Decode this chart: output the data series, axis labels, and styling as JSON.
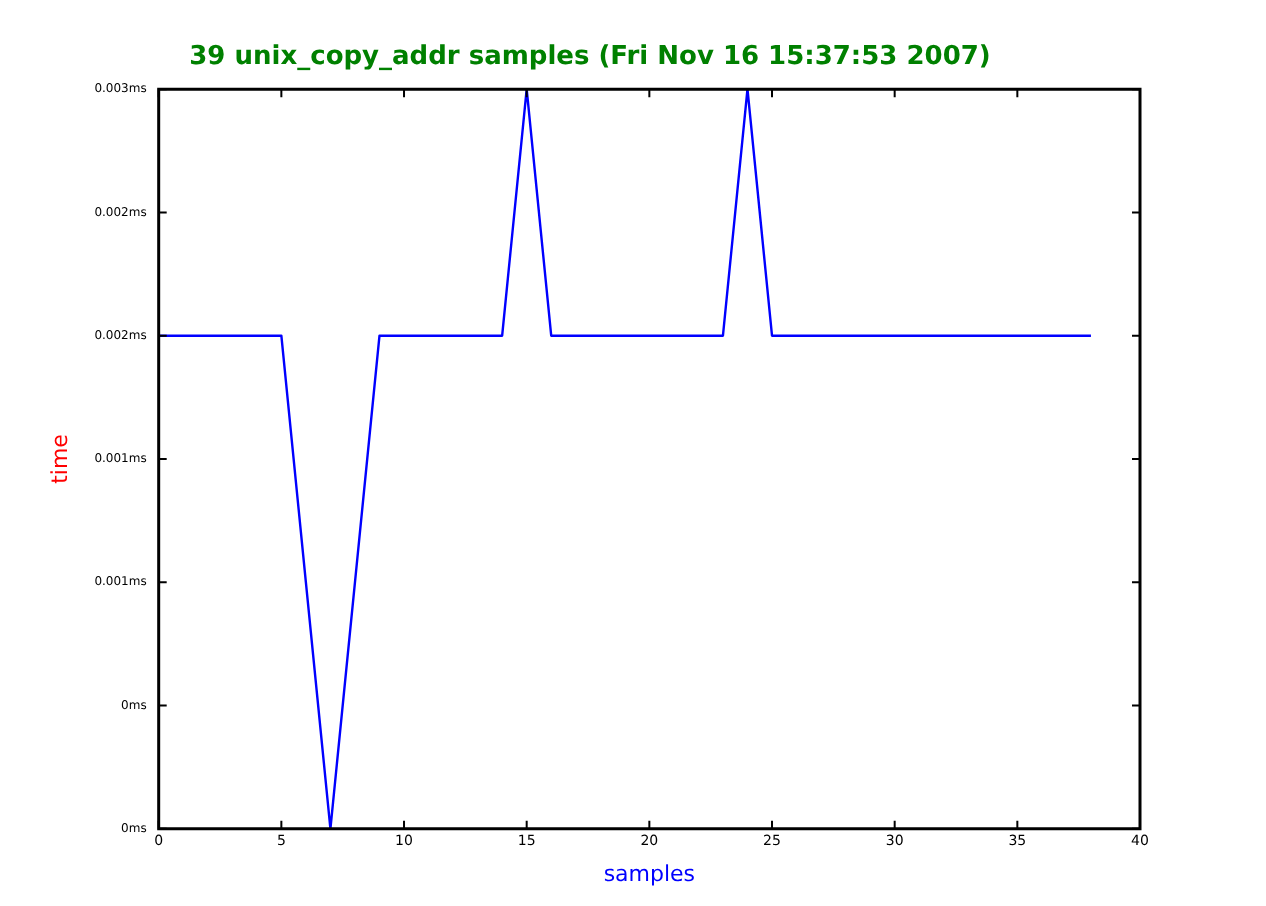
{
  "chart_data": {
    "type": "line",
    "title": "39 unix_copy_addr samples (Fri Nov 16 15:37:53 2007)",
    "xlabel": "samples",
    "ylabel": "time",
    "x": [
      0,
      1,
      2,
      3,
      4,
      5,
      6,
      7,
      8,
      9,
      10,
      11,
      12,
      13,
      14,
      15,
      16,
      17,
      18,
      19,
      20,
      21,
      22,
      23,
      24,
      25,
      26,
      27,
      28,
      29,
      30,
      31,
      32,
      33,
      34,
      35,
      36,
      37,
      38
    ],
    "series": [
      {
        "color": "#0000ff",
        "values": [
          0.002,
          0.002,
          0.002,
          0.002,
          0.002,
          0.002,
          0.001,
          0,
          0.001,
          0.002,
          0.002,
          0.002,
          0.002,
          0.002,
          0.002,
          0.003,
          0.002,
          0.002,
          0.002,
          0.002,
          0.002,
          0.002,
          0.002,
          0.002,
          0.003,
          0.002,
          0.002,
          0.002,
          0.002,
          0.002,
          0.002,
          0.002,
          0.002,
          0.002,
          0.002,
          0.002,
          0.002,
          0.002,
          0.002
        ]
      }
    ],
    "xlim": [
      0,
      40
    ],
    "xticks": [
      0,
      5,
      10,
      15,
      20,
      25,
      30,
      35,
      40
    ],
    "ylim": [
      0,
      0.003
    ],
    "yticks": [
      {
        "value": 0,
        "label": "0ms"
      },
      {
        "value": 0.0005,
        "label": "0ms"
      },
      {
        "value": 0.001,
        "label": "0.001ms"
      },
      {
        "value": 0.0015,
        "label": "0.001ms"
      },
      {
        "value": 0.002,
        "label": "0.002ms"
      },
      {
        "value": 0.0025,
        "label": "0.002ms"
      },
      {
        "value": 0.003,
        "label": "0.003ms"
      }
    ],
    "legend": false,
    "marker": "none",
    "line_style": "solid"
  }
}
